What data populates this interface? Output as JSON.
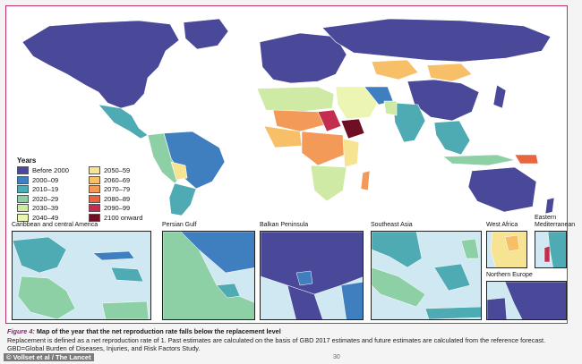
{
  "map": {
    "legend": {
      "title": "Years",
      "items": [
        {
          "label": "Before 2000",
          "color": "#4a4898"
        },
        {
          "label": "2050–59",
          "color": "#f6e493"
        },
        {
          "label": "2000–09",
          "color": "#3f7fbf"
        },
        {
          "label": "2060–69",
          "color": "#f8bf69"
        },
        {
          "label": "2010–19",
          "color": "#4eaab3"
        },
        {
          "label": "2070–79",
          "color": "#f39a58"
        },
        {
          "label": "2020–29",
          "color": "#8ed0a6"
        },
        {
          "label": "2080–89",
          "color": "#e8653f"
        },
        {
          "label": "2030–39",
          "color": "#cfeaa4"
        },
        {
          "label": "2090–99",
          "color": "#c22d50"
        },
        {
          "label": "2040–49",
          "color": "#ecf5b2"
        },
        {
          "label": "2100 onward",
          "color": "#6e0f24"
        }
      ]
    },
    "insets": {
      "caribbean": "Caribbean and central America",
      "persian_gulf": "Persian Gulf",
      "balkan": "Balkan Peninsula",
      "southeast_asia": "Southeast Asia",
      "west_africa": "West Africa",
      "eastern_med": "Eastern Mediterranean",
      "northern_europe": "Northern Europe"
    }
  },
  "caption": {
    "figure_label": "Figure 4:",
    "figure_title": "Map of the year that the net reproduction rate falls below the replacement level",
    "body": "Replacement is defined as a net reproduction rate of 1. Past estimates are calculated on the basis of GBD 2017 estimates and future estimates are calculated from the reference forecast. GBD=Global Burden of Diseases, Injuries, and Risk Factors Study."
  },
  "credit": "© Vollset et al / The Lancet",
  "page_number": "30"
}
